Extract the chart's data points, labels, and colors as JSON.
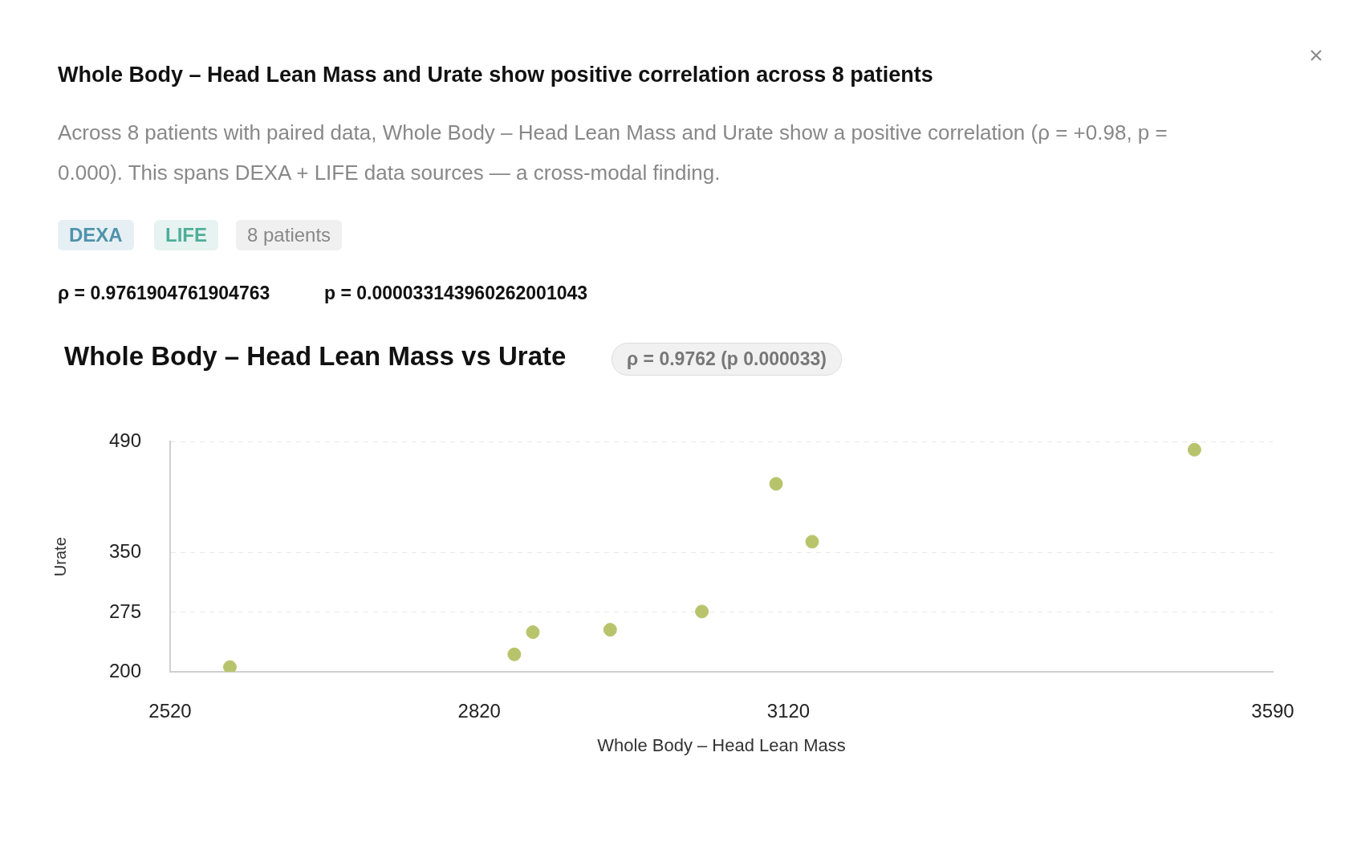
{
  "chart_data": {
    "type": "scatter",
    "title": "Whole Body – Head Lean Mass vs Urate",
    "annotations": [
      "Whole Body – Head Lean Mass and Urate show positive correlation across 8 patients",
      "Across 8 patients with paired data, Whole Body – Head Lean Mass and Urate show a positive correlation (ρ = +0.98, p = 0.000). This spans DEXA + LIFE data sources — a cross-modal finding.",
      "DEXA",
      "LIFE",
      "8 patients",
      "ρ = 0.9761904761904763",
      "p = 0.000033143960262001043",
      "ρ = 0.9762 (p 0.000033)"
    ],
    "xlabel": "Whole Body – Head Lean Mass",
    "ylabel": "Urate",
    "x": [
      2578,
      2854,
      2872,
      2947,
      3036,
      3108,
      3143,
      3514
    ],
    "values": [
      206,
      222,
      250,
      253,
      276,
      437,
      364,
      480
    ],
    "color": "#b8c46c",
    "marker": "circle",
    "xlim": [
      2520,
      3590
    ],
    "xticks": [
      2520,
      2820,
      3120,
      3590
    ],
    "ylim": [
      200,
      490
    ],
    "yticks": [
      200,
      275,
      350,
      490
    ],
    "grid": "y",
    "legend": false
  }
}
